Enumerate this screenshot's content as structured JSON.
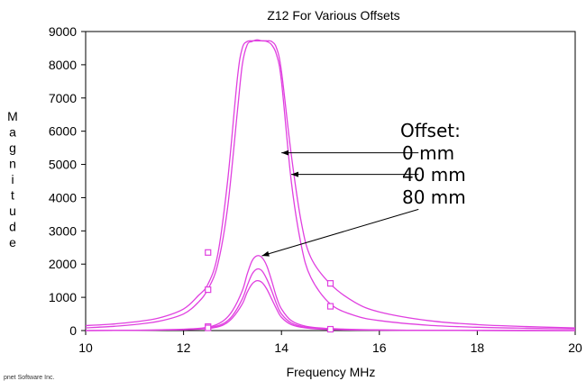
{
  "chart_data": {
    "type": "line",
    "title": "Z12 For Various Offsets",
    "xlabel": "Frequency MHz",
    "ylabel": "Magnitude",
    "xlim": [
      10,
      20
    ],
    "ylim": [
      0,
      9000
    ],
    "x_ticks": [
      10,
      12,
      14,
      16,
      18,
      20
    ],
    "y_ticks": [
      0,
      1000,
      2000,
      3000,
      4000,
      5000,
      6000,
      7000,
      8000,
      9000
    ],
    "grid": false,
    "line_color": "#e040e0",
    "series": [
      {
        "name": "0 mm",
        "x": [
          10,
          10.5,
          11,
          11.5,
          12,
          12.3,
          12.5,
          12.7,
          12.9,
          13.1,
          13.2,
          13.3,
          13.4,
          13.5,
          13.6,
          13.7,
          13.8,
          13.9,
          14.0,
          14.2,
          14.4,
          14.6,
          15,
          15.5,
          16,
          17,
          18,
          19,
          20
        ],
        "y": [
          150,
          190,
          260,
          380,
          650,
          1050,
          1400,
          2300,
          4500,
          7600,
          8500,
          8700,
          8720,
          8720,
          8720,
          8720,
          8700,
          8500,
          7800,
          5300,
          3300,
          2200,
          1400,
          850,
          560,
          300,
          180,
          120,
          80
        ]
      },
      {
        "name": "0 mm",
        "x": [
          10,
          10.5,
          11,
          11.5,
          12,
          12.3,
          12.5,
          12.7,
          12.9,
          13.1,
          13.2,
          13.3,
          13.4,
          13.5,
          13.6,
          13.7,
          13.8,
          13.9,
          14.0,
          14.2,
          14.4,
          14.6,
          15,
          15.5,
          16,
          17,
          18,
          19,
          20
        ],
        "y": [
          80,
          120,
          180,
          280,
          500,
          850,
          1250,
          2000,
          3700,
          6600,
          8000,
          8600,
          8700,
          8750,
          8720,
          8700,
          8600,
          8300,
          7500,
          4500,
          2600,
          1600,
          800,
          450,
          300,
          160,
          100,
          70,
          50
        ]
      },
      {
        "name": "40 mm",
        "x": [
          10,
          11,
          12,
          12.5,
          12.8,
          13.0,
          13.2,
          13.3,
          13.4,
          13.5,
          13.6,
          13.7,
          13.8,
          13.9,
          14.0,
          14.2,
          14.5,
          15,
          16,
          17,
          18,
          20
        ],
        "y": [
          0,
          10,
          40,
          100,
          280,
          600,
          1200,
          1700,
          2100,
          2250,
          2200,
          1950,
          1500,
          1000,
          650,
          300,
          130,
          60,
          20,
          8,
          4,
          0
        ]
      },
      {
        "name": "80 mm",
        "x": [
          10,
          11,
          12,
          12.5,
          12.8,
          13.0,
          13.2,
          13.3,
          13.4,
          13.5,
          13.6,
          13.7,
          13.8,
          13.9,
          14.0,
          14.2,
          14.5,
          15,
          16,
          17,
          18,
          20
        ],
        "y": [
          0,
          8,
          30,
          80,
          200,
          450,
          950,
          1350,
          1700,
          1850,
          1800,
          1550,
          1200,
          800,
          500,
          230,
          100,
          40,
          15,
          6,
          3,
          0
        ]
      },
      {
        "name": "80 mm",
        "x": [
          10,
          11,
          12,
          12.5,
          12.8,
          13.0,
          13.2,
          13.3,
          13.4,
          13.5,
          13.6,
          13.7,
          13.8,
          13.9,
          14.0,
          14.2,
          14.5,
          15,
          16,
          17,
          18,
          20
        ],
        "y": [
          0,
          6,
          25,
          60,
          160,
          380,
          800,
          1150,
          1400,
          1500,
          1450,
          1250,
          950,
          650,
          400,
          180,
          80,
          30,
          10,
          4,
          2,
          0
        ]
      }
    ],
    "markers": [
      {
        "x": 12.5,
        "y": 2350
      },
      {
        "x": 12.5,
        "y": 1230
      },
      {
        "x": 15.0,
        "y": 1420
      },
      {
        "x": 15.0,
        "y": 730
      },
      {
        "x": 12.5,
        "y": 120
      },
      {
        "x": 12.5,
        "y": 80
      },
      {
        "x": 15.0,
        "y": 40
      }
    ],
    "annotations": {
      "heading": "Offset:",
      "labels": [
        "0 mm",
        "40 mm",
        "80 mm"
      ],
      "arrows": [
        {
          "from": [
            16.8,
            5350
          ],
          "to": [
            14.0,
            5350
          ]
        },
        {
          "from": [
            16.8,
            4700
          ],
          "to": [
            14.2,
            4700
          ]
        },
        {
          "from": [
            16.8,
            3650
          ],
          "to": [
            13.6,
            2250
          ]
        }
      ]
    },
    "footer": "pnet Software Inc."
  }
}
